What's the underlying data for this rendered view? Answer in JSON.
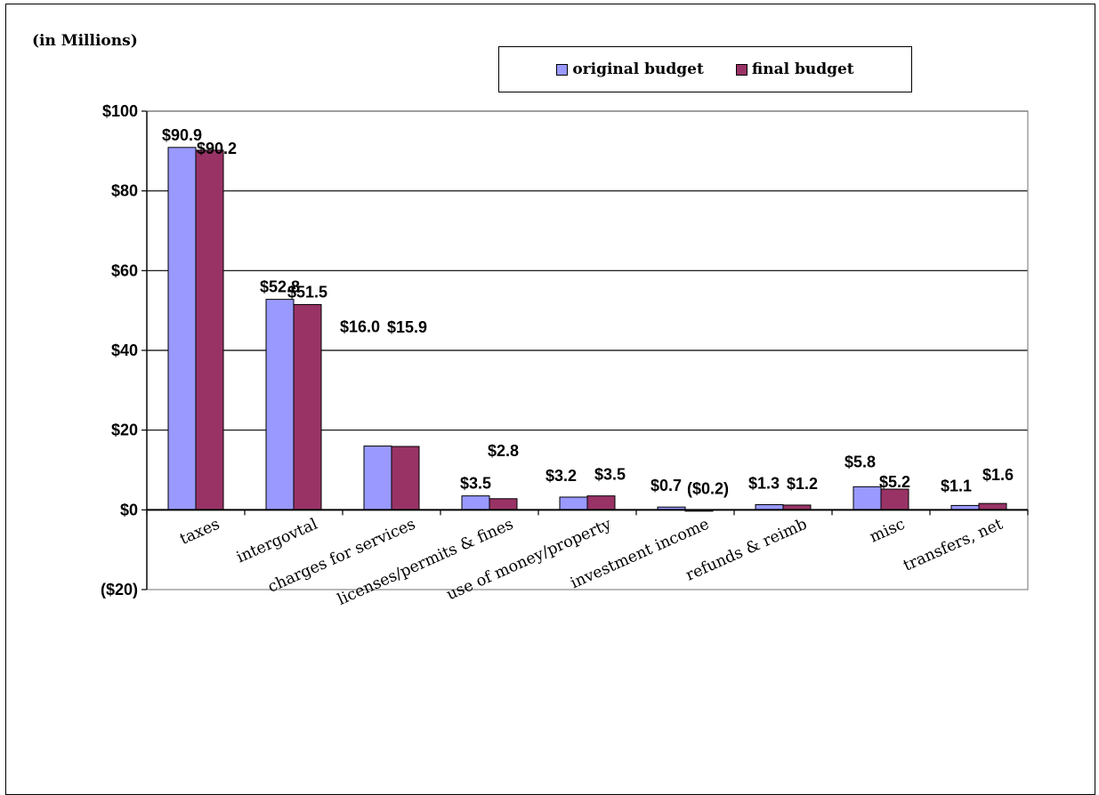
{
  "chart_data": {
    "type": "bar",
    "units_note": "(in Millions)",
    "categories": [
      "taxes",
      "intergovtal",
      "charges for services",
      "licenses/permits & fines",
      "use of money/property",
      "investment income",
      "refunds & reimb",
      "misc",
      "transfers, net"
    ],
    "series": [
      {
        "name": "original budget",
        "color": "#9999ff",
        "values": [
          90.9,
          52.8,
          16.0,
          3.5,
          3.2,
          0.7,
          1.3,
          5.8,
          1.1
        ],
        "labels": [
          "$90.9",
          "$52.8",
          "$16.0",
          "$3.5",
          "$3.2",
          "$0.7",
          "$1.3",
          "$5.8",
          "$1.1"
        ]
      },
      {
        "name": "final budget",
        "color": "#993366",
        "values": [
          90.2,
          51.5,
          15.9,
          2.8,
          3.5,
          -0.2,
          1.2,
          5.2,
          1.6
        ],
        "labels": [
          "$90.2",
          "$51.5",
          "$15.9",
          "$2.8",
          "$3.5",
          "($0.2)",
          "$1.2",
          "$5.2",
          "$1.6"
        ]
      }
    ],
    "ylim": [
      -20,
      100
    ],
    "yticks": [
      -20,
      0,
      20,
      40,
      60,
      80,
      100
    ],
    "ytick_labels": [
      "($20)",
      "$0",
      "$20",
      "$40",
      "$60",
      "$80",
      "$100"
    ],
    "grid": true,
    "legend_position": "top-center"
  }
}
